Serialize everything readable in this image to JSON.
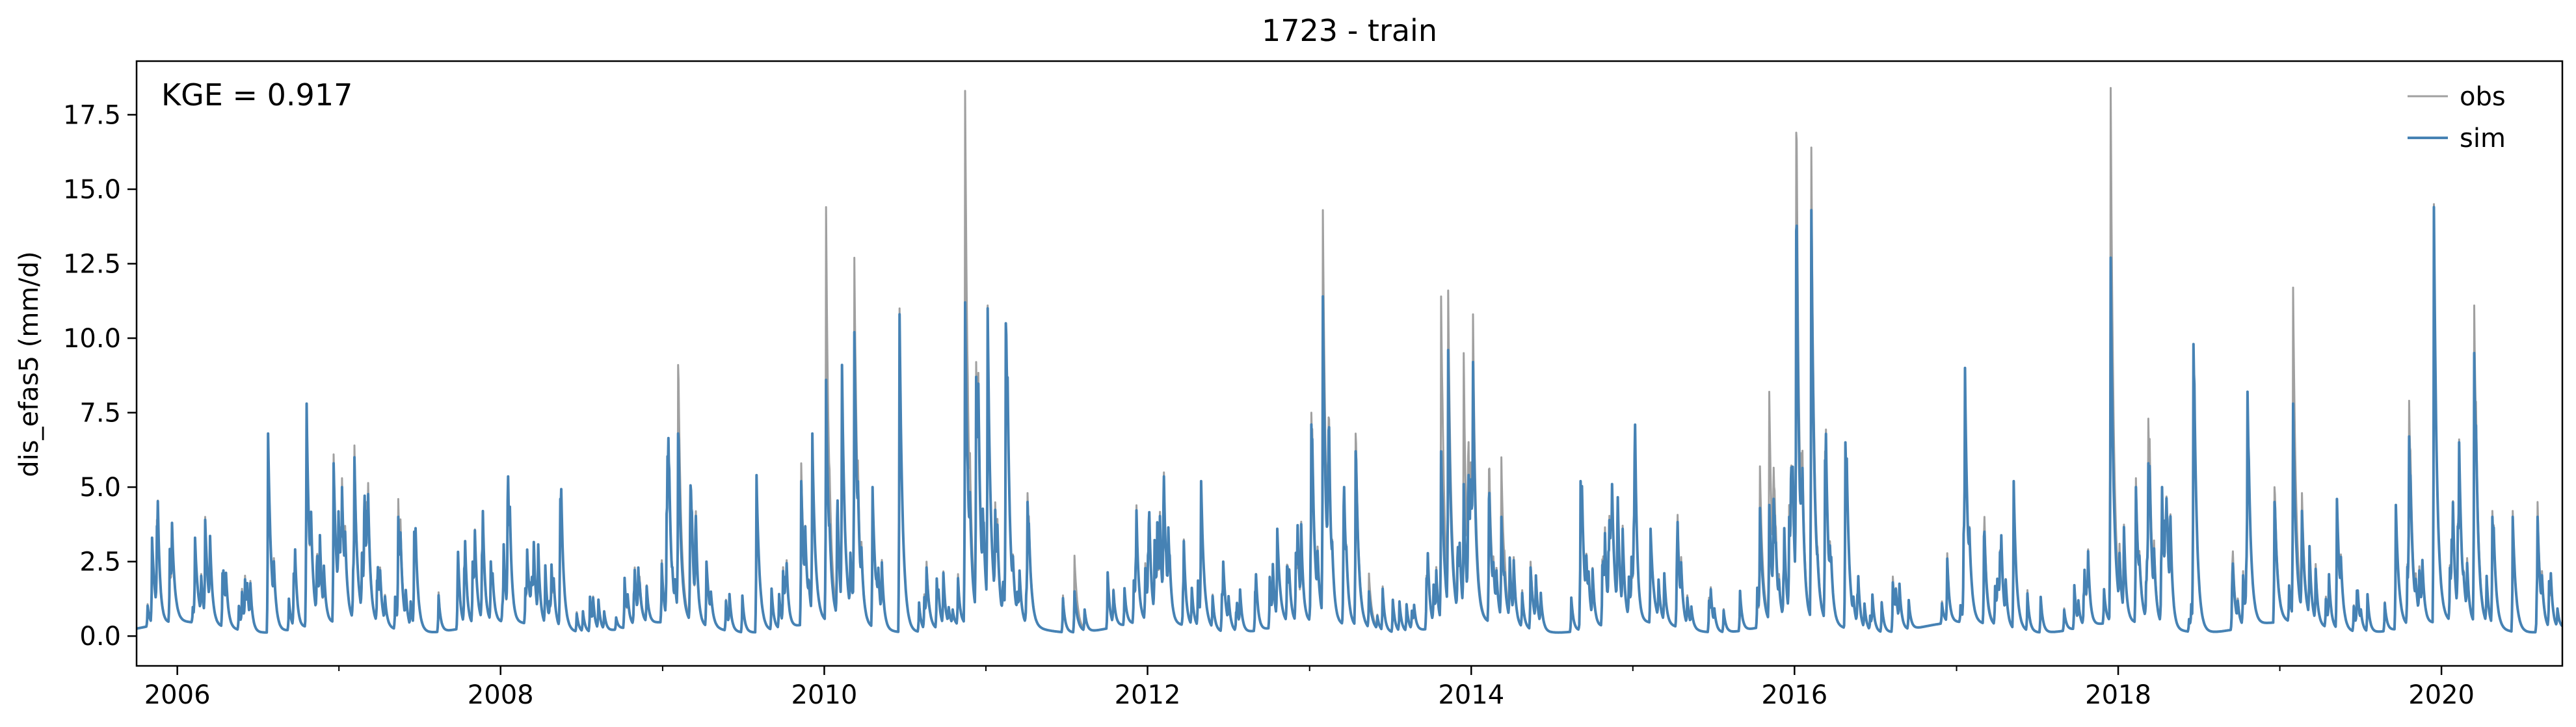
{
  "chart_data": {
    "type": "line",
    "title": "1723 - train",
    "xlabel": "",
    "ylabel": "dis_efas5 (mm/d)",
    "annotation": "KGE = 0.917",
    "xlim": [
      "2005-10-01",
      "2020-09-30"
    ],
    "ylim": [
      -1.0,
      19.3
    ],
    "x_ticks": [
      "2006",
      "2008",
      "2010",
      "2012",
      "2014",
      "2016",
      "2018",
      "2020"
    ],
    "y_ticks": [
      "0.0",
      "2.5",
      "5.0",
      "7.5",
      "10.0",
      "12.5",
      "15.0",
      "17.5"
    ],
    "grid": false,
    "legend": {
      "position": "top-right",
      "entries": [
        "obs",
        "sim"
      ]
    },
    "colors": {
      "obs": "#a0a0a0",
      "sim": "#4682b4"
    },
    "series": [
      {
        "name": "obs",
        "peaks": [
          [
            "2005-11-05",
            3.3
          ],
          [
            "2005-12-20",
            3.8
          ],
          [
            "2006-02-10",
            3.3
          ],
          [
            "2006-03-05",
            4.0
          ],
          [
            "2006-04-15",
            2.2
          ],
          [
            "2006-07-25",
            6.8
          ],
          [
            "2006-10-20",
            7.7
          ],
          [
            "2006-12-20",
            6.1
          ],
          [
            "2007-01-08",
            5.3
          ],
          [
            "2007-02-05",
            6.4
          ],
          [
            "2007-03-05",
            4.5
          ],
          [
            "2007-05-15",
            4.6
          ],
          [
            "2007-06-20",
            3.5
          ],
          [
            "2007-10-30",
            2.5
          ],
          [
            "2008-03-01",
            2.9
          ],
          [
            "2008-05-15",
            4.6
          ],
          [
            "2008-11-10",
            2.0
          ],
          [
            "2009-01-10",
            4.1
          ],
          [
            "2009-02-05",
            9.1
          ],
          [
            "2009-04-10",
            2.5
          ],
          [
            "2009-08-01",
            5.4
          ],
          [
            "2009-11-10",
            5.8
          ],
          [
            "2009-12-05",
            6.6
          ],
          [
            "2010-01-05",
            14.4
          ],
          [
            "2010-02-10",
            9.1
          ],
          [
            "2010-03-10",
            12.7
          ],
          [
            "2010-04-20",
            5.0
          ],
          [
            "2010-06-20",
            11.0
          ],
          [
            "2010-08-20",
            2.5
          ],
          [
            "2010-11-15",
            18.3
          ],
          [
            "2010-12-10",
            9.2
          ],
          [
            "2011-01-05",
            11.1
          ],
          [
            "2011-02-15",
            10.5
          ],
          [
            "2011-04-05",
            4.8
          ],
          [
            "2011-07-20",
            2.7
          ],
          [
            "2011-12-05",
            2.3
          ],
          [
            "2012-02-10",
            3.4
          ],
          [
            "2012-05-01",
            5.2
          ],
          [
            "2012-06-20",
            2.5
          ],
          [
            "2012-10-20",
            3.6
          ],
          [
            "2013-01-05",
            7.5
          ],
          [
            "2013-01-31",
            14.3
          ],
          [
            "2013-03-20",
            5.0
          ],
          [
            "2013-04-15",
            6.8
          ],
          [
            "2013-05-15",
            2.1
          ],
          [
            "2013-10-25",
            11.4
          ],
          [
            "2013-11-10",
            11.6
          ],
          [
            "2013-12-15",
            9.5
          ],
          [
            "2014-01-05",
            10.8
          ],
          [
            "2014-02-10",
            5.6
          ],
          [
            "2014-03-10",
            6.0
          ],
          [
            "2014-05-15",
            2.5
          ],
          [
            "2014-09-05",
            5.2
          ],
          [
            "2014-11-15",
            5.1
          ],
          [
            "2015-02-10",
            3.6
          ],
          [
            "2015-04-10",
            2.5
          ],
          [
            "2015-10-15",
            5.7
          ],
          [
            "2015-11-05",
            8.2
          ],
          [
            "2015-12-20",
            4.4
          ],
          [
            "2016-01-05",
            16.9
          ],
          [
            "2016-02-08",
            16.4
          ],
          [
            "2016-03-10",
            6.2
          ],
          [
            "2016-04-25",
            6.5
          ],
          [
            "2016-08-10",
            2.0
          ],
          [
            "2017-01-20",
            9.0
          ],
          [
            "2017-03-05",
            4.0
          ],
          [
            "2017-05-10",
            5.2
          ],
          [
            "2017-12-15",
            18.4
          ],
          [
            "2018-02-10",
            5.3
          ],
          [
            "2018-03-10",
            7.3
          ],
          [
            "2018-04-10",
            5.0
          ],
          [
            "2018-06-20",
            9.8
          ],
          [
            "2018-09-15",
            2.0
          ],
          [
            "2018-10-20",
            8.2
          ],
          [
            "2018-12-20",
            5.0
          ],
          [
            "2019-01-31",
            11.7
          ],
          [
            "2019-02-20",
            4.8
          ],
          [
            "2019-05-10",
            4.6
          ],
          [
            "2019-09-20",
            4.4
          ],
          [
            "2019-10-20",
            7.9
          ],
          [
            "2019-12-15",
            14.5
          ],
          [
            "2020-02-10",
            6.6
          ],
          [
            "2020-03-15",
            11.1
          ],
          [
            "2020-04-25",
            4.2
          ],
          [
            "2020-06-10",
            4.2
          ],
          [
            "2020-08-05",
            4.5
          ]
        ]
      },
      {
        "name": "sim",
        "peaks": [
          [
            "2005-11-05",
            3.3
          ],
          [
            "2005-12-20",
            3.8
          ],
          [
            "2006-02-10",
            3.3
          ],
          [
            "2006-03-05",
            3.9
          ],
          [
            "2006-04-15",
            2.2
          ],
          [
            "2006-07-25",
            6.8
          ],
          [
            "2006-10-20",
            7.8
          ],
          [
            "2006-12-20",
            5.8
          ],
          [
            "2007-01-08",
            5.0
          ],
          [
            "2007-02-05",
            6.0
          ],
          [
            "2007-03-05",
            4.2
          ],
          [
            "2007-05-15",
            4.0
          ],
          [
            "2007-06-20",
            3.5
          ],
          [
            "2007-10-30",
            2.5
          ],
          [
            "2008-03-01",
            2.9
          ],
          [
            "2008-05-15",
            4.6
          ],
          [
            "2008-11-10",
            1.8
          ],
          [
            "2009-01-10",
            4.1
          ],
          [
            "2009-02-05",
            6.8
          ],
          [
            "2009-04-10",
            2.5
          ],
          [
            "2009-08-01",
            5.4
          ],
          [
            "2009-11-10",
            5.2
          ],
          [
            "2009-12-05",
            6.8
          ],
          [
            "2010-01-05",
            8.6
          ],
          [
            "2010-02-10",
            9.1
          ],
          [
            "2010-03-10",
            10.2
          ],
          [
            "2010-04-20",
            5.0
          ],
          [
            "2010-06-20",
            10.8
          ],
          [
            "2010-08-20",
            2.3
          ],
          [
            "2010-11-15",
            11.2
          ],
          [
            "2010-12-10",
            8.7
          ],
          [
            "2011-01-05",
            11.0
          ],
          [
            "2011-02-15",
            10.5
          ],
          [
            "2011-04-05",
            4.5
          ],
          [
            "2011-07-20",
            1.5
          ],
          [
            "2011-12-05",
            2.3
          ],
          [
            "2012-02-10",
            1.5
          ],
          [
            "2012-05-01",
            5.2
          ],
          [
            "2012-06-20",
            2.5
          ],
          [
            "2012-10-20",
            3.6
          ],
          [
            "2013-01-05",
            7.1
          ],
          [
            "2013-01-31",
            11.4
          ],
          [
            "2013-03-20",
            5.0
          ],
          [
            "2013-04-15",
            6.2
          ],
          [
            "2013-05-15",
            1.5
          ],
          [
            "2013-10-25",
            6.2
          ],
          [
            "2013-11-10",
            9.6
          ],
          [
            "2013-12-15",
            5.1
          ],
          [
            "2014-01-05",
            9.2
          ],
          [
            "2014-02-10",
            4.6
          ],
          [
            "2014-03-10",
            4.0
          ],
          [
            "2014-05-15",
            2.3
          ],
          [
            "2014-09-05",
            5.2
          ],
          [
            "2014-11-15",
            5.1
          ],
          [
            "2015-02-10",
            3.6
          ],
          [
            "2015-04-10",
            2.2
          ],
          [
            "2015-10-15",
            4.3
          ],
          [
            "2015-11-05",
            4.4
          ],
          [
            "2015-12-20",
            4.0
          ],
          [
            "2016-01-05",
            13.6
          ],
          [
            "2016-02-08",
            14.3
          ],
          [
            "2016-03-10",
            5.9
          ],
          [
            "2016-04-25",
            6.5
          ],
          [
            "2016-08-10",
            1.8
          ],
          [
            "2017-01-20",
            9.0
          ],
          [
            "2017-03-05",
            3.5
          ],
          [
            "2017-05-10",
            5.2
          ],
          [
            "2017-12-15",
            12.7
          ],
          [
            "2018-02-10",
            5.0
          ],
          [
            "2018-03-10",
            5.8
          ],
          [
            "2018-04-10",
            5.0
          ],
          [
            "2018-06-20",
            9.8
          ],
          [
            "2018-09-15",
            1.5
          ],
          [
            "2018-10-20",
            8.2
          ],
          [
            "2018-12-20",
            4.5
          ],
          [
            "2019-01-31",
            7.8
          ],
          [
            "2019-02-20",
            4.2
          ],
          [
            "2019-05-10",
            4.6
          ],
          [
            "2019-09-20",
            4.4
          ],
          [
            "2019-10-20",
            6.7
          ],
          [
            "2019-12-15",
            14.4
          ],
          [
            "2020-02-10",
            6.5
          ],
          [
            "2020-03-15",
            9.5
          ],
          [
            "2020-04-25",
            4.0
          ],
          [
            "2020-06-10",
            4.0
          ],
          [
            "2020-08-05",
            4.0
          ]
        ]
      }
    ]
  }
}
